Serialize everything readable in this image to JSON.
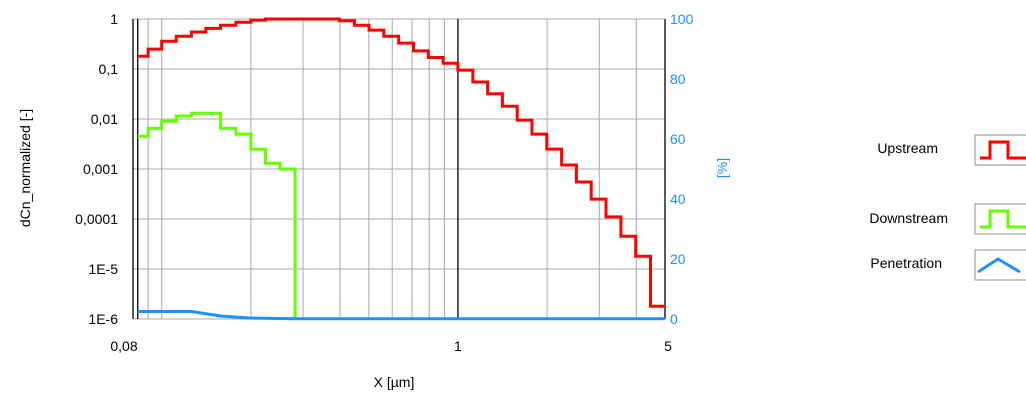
{
  "chart_data": {
    "type": "line",
    "xlabel": "X [µm]",
    "ylabel": "dCn_normalized [-]",
    "y2label": "[%]",
    "xscale": "log",
    "yscale": "log",
    "xlim": [
      0.08,
      5
    ],
    "ylim": [
      1e-06,
      1
    ],
    "y2lim": [
      0,
      100
    ],
    "x_tick_labels": [
      "0,08",
      "1",
      "5"
    ],
    "y_tick_labels": [
      "1",
      "0,1",
      "0,01",
      "0,001",
      "0,0001",
      "1E-5",
      "1E-6"
    ],
    "y2_tick_labels": [
      "100",
      "80",
      "60",
      "40",
      "20",
      "0"
    ],
    "grid": true,
    "legend_position": "right",
    "colors": {
      "upstream": "#ff0000",
      "downstream": "#66ff00",
      "penetration": "#1e90ff",
      "right_axis": "#1e90ff"
    },
    "series": [
      {
        "name": "Upstream",
        "axis": "left",
        "step_edges": [
          0.083,
          0.09,
          0.1,
          0.112,
          0.126,
          0.141,
          0.158,
          0.178,
          0.2,
          0.224,
          0.251,
          0.282,
          0.316,
          0.355,
          0.398,
          0.447,
          0.501,
          0.562,
          0.631,
          0.708,
          0.794,
          0.891,
          1.0,
          1.122,
          1.259,
          1.413,
          1.585,
          1.778,
          1.995,
          2.239,
          2.512,
          2.818,
          3.162,
          3.548,
          3.981,
          4.467,
          5.0
        ],
        "values": [
          0.18,
          0.25,
          0.36,
          0.45,
          0.55,
          0.65,
          0.75,
          0.86,
          0.95,
          1.0,
          1.0,
          1.0,
          1.0,
          1.0,
          0.92,
          0.75,
          0.6,
          0.45,
          0.33,
          0.23,
          0.17,
          0.13,
          0.095,
          0.055,
          0.032,
          0.018,
          0.0095,
          0.005,
          0.0025,
          0.0012,
          0.00055,
          0.00025,
          0.00011,
          4.5e-05,
          1.8e-05,
          1.8e-06
        ]
      },
      {
        "name": "Downstream",
        "axis": "left",
        "step_edges": [
          0.083,
          0.09,
          0.1,
          0.112,
          0.126,
          0.141,
          0.158,
          0.178,
          0.2,
          0.224,
          0.251,
          0.282
        ],
        "values": [
          0.0045,
          0.0065,
          0.009,
          0.0115,
          0.013,
          0.013,
          0.0065,
          0.005,
          0.0025,
          0.0013,
          0.001
        ],
        "drop_to_min_at": 0.282
      },
      {
        "name": "Penetration",
        "axis": "right",
        "x": [
          0.083,
          0.1,
          0.126,
          0.158,
          0.2,
          0.282,
          0.5,
          1.0,
          5.0
        ],
        "values": [
          2.5,
          2.5,
          2.5,
          1.0,
          0.3,
          0.1,
          0.1,
          0.1,
          0.1
        ]
      }
    ]
  }
}
